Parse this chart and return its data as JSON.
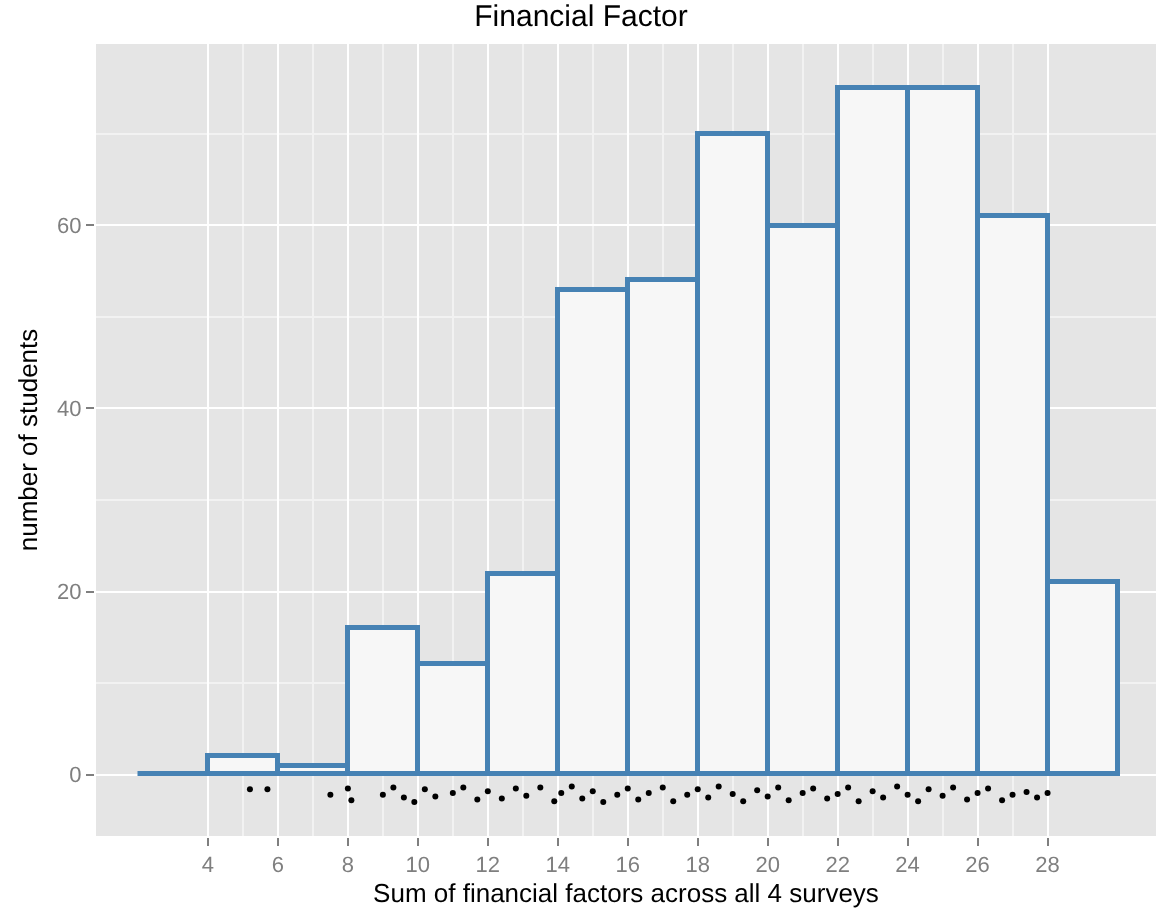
{
  "chart_data": {
    "type": "histogram",
    "title": "Financial Factor",
    "xlabel": "Sum of financial factors across all 4 surveys",
    "ylabel": "number of students",
    "bins": [
      2,
      4,
      6,
      8,
      10,
      12,
      14,
      16,
      18,
      20,
      22,
      24,
      26,
      28,
      30
    ],
    "values": [
      0,
      2,
      1,
      16,
      12,
      22,
      53,
      54,
      70,
      60,
      75,
      75,
      61,
      21
    ],
    "color": "#4682b4",
    "series": [
      {
        "type": "scatter",
        "color": "#000000",
        "marker": "circle",
        "x": [
          5.2,
          5.7,
          7.5,
          8.0,
          8.1,
          9.0,
          9.3,
          9.6,
          9.9,
          10.2,
          10.5,
          11.0,
          11.3,
          11.7,
          12.0,
          12.4,
          12.8,
          13.1,
          13.5,
          13.9,
          14.1,
          14.4,
          14.7,
          15.0,
          15.3,
          15.7,
          16.0,
          16.3,
          16.6,
          17.0,
          17.3,
          17.7,
          18.0,
          18.3,
          18.6,
          19.0,
          19.3,
          19.7,
          20.0,
          20.3,
          20.6,
          21.0,
          21.3,
          21.7,
          22.0,
          22.3,
          22.6,
          23.0,
          23.3,
          23.7,
          24.0,
          24.3,
          24.6,
          25.0,
          25.3,
          25.7,
          26.0,
          26.3,
          26.7,
          27.0,
          27.4,
          27.7,
          28.0
        ],
        "values": [
          -1.6,
          -1.6,
          -2.2,
          -1.5,
          -2.8,
          -2.2,
          -1.4,
          -2.5,
          -3.0,
          -1.6,
          -2.4,
          -2.0,
          -1.4,
          -2.7,
          -1.8,
          -2.6,
          -1.5,
          -2.3,
          -1.4,
          -2.9,
          -2.0,
          -1.3,
          -2.6,
          -1.8,
          -3.0,
          -2.2,
          -1.5,
          -2.7,
          -2.0,
          -1.4,
          -2.9,
          -2.2,
          -1.6,
          -2.5,
          -1.3,
          -2.1,
          -2.9,
          -1.7,
          -2.4,
          -1.4,
          -2.8,
          -2.0,
          -1.5,
          -2.6,
          -2.1,
          -1.4,
          -2.9,
          -1.8,
          -2.5,
          -1.3,
          -2.2,
          -2.9,
          -1.6,
          -2.3,
          -1.4,
          -2.7,
          -2.0,
          -1.5,
          -2.8,
          -2.2,
          -1.9,
          -2.5,
          -2.0
        ]
      }
    ],
    "xlim": [
      0.8,
      31.1
    ],
    "xticks": [
      4,
      6,
      8,
      10,
      12,
      14,
      16,
      18,
      20,
      22,
      24,
      26,
      28
    ],
    "ylim": [
      -6.7,
      79.8
    ],
    "yticks": [
      0,
      20,
      40,
      60
    ],
    "grid": true
  }
}
